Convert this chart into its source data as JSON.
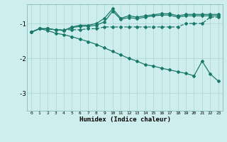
{
  "xlabel": "Humidex (Indice chaleur)",
  "bg_color": "#ceeeed",
  "grid_color": "#aad4d3",
  "line_color": "#1a7a6a",
  "xlim": [
    -0.5,
    23.5
  ],
  "ylim": [
    -3.5,
    -0.45
  ],
  "yticks": [
    -3,
    -2,
    -1
  ],
  "xticks": [
    0,
    1,
    2,
    3,
    4,
    5,
    6,
    7,
    8,
    9,
    10,
    11,
    12,
    13,
    14,
    15,
    16,
    17,
    18,
    19,
    20,
    21,
    22,
    23
  ],
  "line1_x": [
    0,
    1,
    2,
    3,
    4,
    5,
    6,
    7,
    8,
    9,
    10,
    11,
    12,
    13,
    14,
    15,
    16,
    17,
    18,
    19,
    20,
    21,
    22,
    23
  ],
  "line1_y": [
    -1.25,
    -1.15,
    -1.15,
    -1.18,
    -1.18,
    -1.18,
    -1.18,
    -1.15,
    -1.15,
    -1.1,
    -1.1,
    -1.1,
    -1.1,
    -1.1,
    -1.1,
    -1.1,
    -1.1,
    -1.1,
    -1.1,
    -1.0,
    -1.0,
    -1.0,
    -0.82,
    -0.82
  ],
  "line2_x": [
    0,
    1,
    2,
    3,
    4,
    5,
    6,
    7,
    8,
    9,
    10,
    11,
    12,
    13,
    14,
    15,
    16,
    17,
    18,
    19,
    20,
    21,
    22,
    23
  ],
  "line2_y": [
    -1.25,
    -1.15,
    -1.15,
    -1.18,
    -1.2,
    -1.1,
    -1.05,
    -1.05,
    -1.0,
    -0.85,
    -0.58,
    -0.85,
    -0.78,
    -0.82,
    -0.78,
    -0.75,
    -0.72,
    -0.72,
    -0.78,
    -0.74,
    -0.74,
    -0.74,
    -0.74,
    -0.74
  ],
  "line3_x": [
    0,
    1,
    2,
    3,
    4,
    5,
    6,
    7,
    8,
    9,
    10,
    11,
    12,
    13,
    14,
    15,
    16,
    17,
    18,
    19,
    20,
    21,
    22,
    23
  ],
  "line3_y": [
    -1.25,
    -1.15,
    -1.15,
    -1.18,
    -1.2,
    -1.12,
    -1.08,
    -1.08,
    -1.05,
    -0.95,
    -0.65,
    -0.88,
    -0.83,
    -0.86,
    -0.82,
    -0.78,
    -0.76,
    -0.76,
    -0.82,
    -0.78,
    -0.78,
    -0.78,
    -0.78,
    -0.78
  ],
  "line4_x": [
    0,
    1,
    2,
    3,
    4,
    5,
    6,
    7,
    8,
    9,
    10,
    11,
    12,
    13,
    14,
    15,
    16,
    17,
    18,
    19,
    20,
    21,
    22,
    23
  ],
  "line4_y": [
    -1.25,
    -1.15,
    -1.2,
    -1.28,
    -1.32,
    -1.38,
    -1.45,
    -1.52,
    -1.6,
    -1.7,
    -1.8,
    -1.9,
    -2.0,
    -2.08,
    -2.18,
    -2.22,
    -2.28,
    -2.33,
    -2.38,
    -2.43,
    -2.5,
    -2.08,
    -2.45,
    -2.65
  ]
}
